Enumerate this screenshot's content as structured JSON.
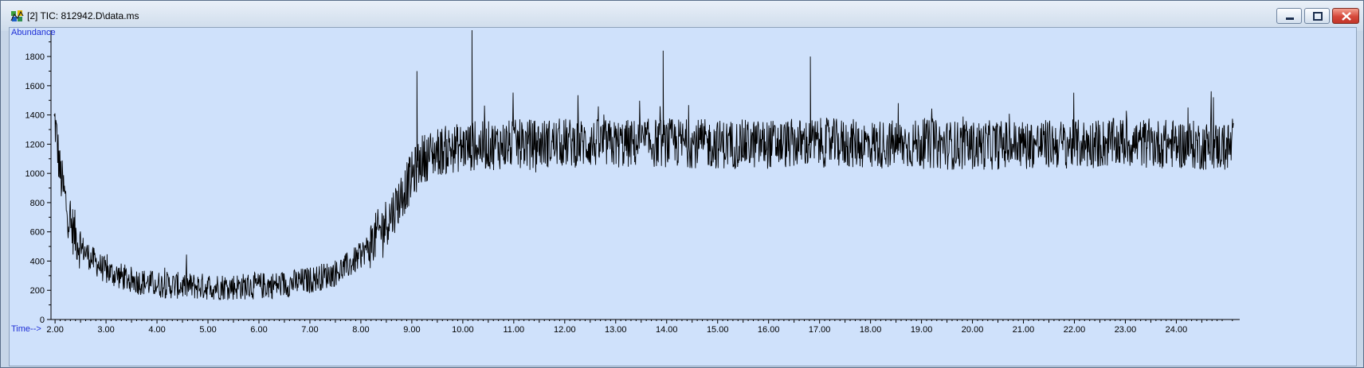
{
  "window": {
    "title": "[2] TIC: 812942.D\\data.ms",
    "icon": "chemstation-app-icon",
    "controls": [
      "minimize-icon",
      "maximize-icon",
      "close-icon"
    ]
  },
  "colors": {
    "plot_background": "#cfe1fb",
    "trace": "#000000",
    "axis_title": "#1f2fd6",
    "window_frame": "#c7d6e8"
  },
  "chart_data": {
    "type": "line",
    "title": "",
    "ylabel": "Abundance",
    "xlabel": "Time-->",
    "xlim": [
      1.92,
      25.15
    ],
    "ylim": [
      0,
      1980
    ],
    "x_ticks": [
      2.0,
      3.0,
      4.0,
      5.0,
      6.0,
      7.0,
      8.0,
      9.0,
      10.0,
      11.0,
      12.0,
      13.0,
      14.0,
      15.0,
      16.0,
      17.0,
      18.0,
      19.0,
      20.0,
      21.0,
      22.0,
      23.0,
      24.0
    ],
    "x_tick_labels": [
      "2.00",
      "3.00",
      "4.00",
      "5.00",
      "6.00",
      "7.00",
      "8.00",
      "9.00",
      "10.00",
      "11.00",
      "12.00",
      "13.00",
      "14.00",
      "15.00",
      "16.00",
      "17.00",
      "18.00",
      "19.00",
      "20.00",
      "21.00",
      "22.00",
      "23.00",
      "24.00"
    ],
    "y_ticks": [
      0,
      200,
      400,
      600,
      800,
      1000,
      1200,
      1400,
      1600,
      1800
    ],
    "y_tick_labels": [
      "0",
      "200",
      "400",
      "600",
      "800",
      "1000",
      "1200",
      "1400",
      "1600",
      "1800"
    ],
    "grid": false,
    "series": [
      {
        "values_description_free": true,
        "x": [
          2.0,
          2.1,
          2.2,
          2.3,
          2.5,
          2.7,
          3.0,
          3.5,
          4.0,
          4.5,
          5.0,
          5.5,
          6.0,
          6.5,
          7.0,
          7.5,
          7.8,
          8.0,
          8.2,
          8.4,
          8.6,
          8.8,
          9.0,
          9.2,
          9.5,
          10.0,
          10.5,
          11.0,
          12.0,
          13.0,
          14.0,
          15.0,
          16.0,
          17.0,
          18.0,
          19.0,
          20.0,
          21.0,
          22.0,
          23.0,
          24.0,
          25.1
        ],
        "y": [
          1350,
          1000,
          820,
          650,
          500,
          420,
          330,
          270,
          240,
          230,
          225,
          225,
          230,
          240,
          270,
          320,
          380,
          440,
          520,
          620,
          720,
          850,
          980,
          1100,
          1150,
          1180,
          1190,
          1200,
          1210,
          1200,
          1210,
          1200,
          1200,
          1210,
          1200,
          1200,
          1190,
          1200,
          1200,
          1210,
          1200,
          1180
        ],
        "noise_amplitude": 170
      }
    ],
    "annotations": [
      {
        "x": 10.18,
        "y": 1980,
        "label": ""
      },
      {
        "x": 13.93,
        "y": 1840,
        "label": ""
      },
      {
        "x": 9.1,
        "y": 1700,
        "label": ""
      },
      {
        "x": 16.82,
        "y": 1800,
        "label": ""
      }
    ]
  }
}
